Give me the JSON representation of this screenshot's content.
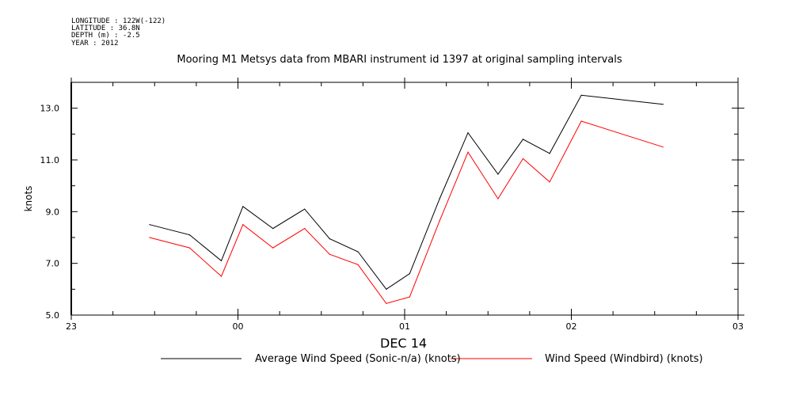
{
  "header": {
    "longitude": "LONGITUDE : 122W(-122)",
    "latitude": "LATITUDE : 36.8N",
    "depth": "DEPTH (m) : -2.5",
    "year": "YEAR : 2012"
  },
  "chart_data": {
    "type": "line",
    "title": "Mooring M1 Metsys data from MBARI instrument id 1397 at original sampling intervals",
    "xlabel": "DEC 14",
    "ylabel": "knots",
    "xticks": [
      "23",
      "00",
      "01",
      "02",
      "03"
    ],
    "xlim": [
      -1,
      3
    ],
    "ylim": [
      5.0,
      14.0
    ],
    "yticks": [
      "5.0",
      "7.0",
      "9.0",
      "11.0",
      "13.0"
    ],
    "x_hours": [
      -0.53,
      -0.29,
      -0.1,
      0.03,
      0.21,
      0.4,
      0.55,
      0.72,
      0.89,
      1.03,
      1.21,
      1.38,
      1.56,
      1.71,
      1.87,
      2.06,
      2.55
    ],
    "series": [
      {
        "name": "Average Wind Speed (Sonic-n/a) (knots)",
        "color": "#000000",
        "values": [
          8.5,
          8.1,
          7.1,
          9.2,
          8.35,
          9.1,
          7.95,
          7.45,
          6.0,
          6.6,
          9.5,
          12.05,
          10.45,
          11.8,
          11.25,
          13.5,
          13.15
        ]
      },
      {
        "name": "Wind Speed (Windbird) (knots)",
        "color": "#ff0000",
        "values": [
          8.0,
          7.6,
          6.5,
          8.5,
          7.6,
          8.35,
          7.35,
          6.95,
          5.45,
          5.7,
          8.65,
          11.3,
          9.5,
          11.05,
          10.15,
          12.5,
          11.5
        ]
      }
    ]
  }
}
